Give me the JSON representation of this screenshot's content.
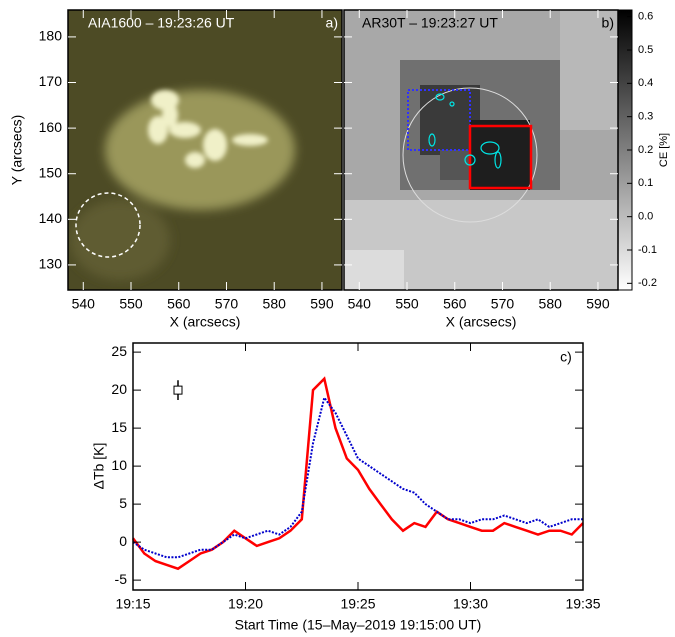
{
  "chart_data": [
    {
      "type": "image",
      "title": "AIA1600 – 19:23:26 UT",
      "panel_label": "a)",
      "xlabel": "X (arcsecs)",
      "ylabel": "Y (arcsecs)",
      "xlim": [
        536.8,
        594.2
      ],
      "xticks": [
        540,
        550,
        560,
        570,
        580,
        590
      ],
      "ylim": [
        124.5,
        185.9
      ],
      "yticks": [
        130,
        140,
        150,
        160,
        170,
        180
      ]
    },
    {
      "type": "image",
      "title": "AR30T – 19:23:27 UT",
      "panel_label": "b)",
      "xlabel": "X (arcsecs)",
      "xlim": [
        536.8,
        594.2
      ],
      "xticks": [
        540,
        550,
        560,
        570,
        580,
        590
      ],
      "ylim": [
        124.5,
        185.9
      ],
      "yticks": [
        130,
        140,
        150,
        160,
        170,
        180
      ],
      "colorbar": {
        "label": "CE [%]",
        "lim": [
          -0.22,
          0.62
        ],
        "ticks": [
          -0.2,
          -0.1,
          {
            "value": 0,
            "label": "0.0"
          },
          0.1,
          0.2,
          0.3,
          0.4,
          0.5,
          0.6
        ]
      }
    },
    {
      "type": "line",
      "panel_label": "c)",
      "xlabel": "Start Time (15–May–2019 19:15:00 UT)",
      "ylabel": "ΔTb [K]",
      "x": [
        0,
        0.5,
        1,
        1.5,
        2,
        2.5,
        3,
        3.5,
        4,
        4.5,
        5,
        5.5,
        6,
        6.5,
        7,
        7.5,
        8,
        8.5,
        9,
        9.5,
        10,
        10.5,
        11,
        11.5,
        12,
        12.5,
        13,
        13.5,
        14,
        14.5,
        15,
        15.5,
        16,
        16.5,
        17,
        17.5,
        18,
        18.5,
        19,
        19.5,
        20
      ],
      "xlim": [
        0,
        20
      ],
      "xticks": [
        {
          "value": 0,
          "label": "19:15"
        },
        {
          "value": 5,
          "label": "19:20"
        },
        {
          "value": 10,
          "label": "19:25"
        },
        {
          "value": 15,
          "label": "19:30"
        },
        {
          "value": 20,
          "label": "19:35"
        }
      ],
      "ylim": [
        -6.3,
        26.2
      ],
      "yticks": [
        -5,
        0,
        5,
        10,
        15,
        20,
        25
      ],
      "series": [
        {
          "name": "red",
          "color": "#ff0000",
          "values": [
            0.5,
            -1.5,
            -2.5,
            -3,
            -3.5,
            -2.5,
            -1.5,
            -1,
            0,
            1.5,
            0.5,
            -0.5,
            0,
            0.5,
            1.5,
            3,
            20,
            21.5,
            15,
            11,
            9.5,
            7,
            5,
            3,
            1.5,
            2.5,
            2,
            4,
            3,
            2.5,
            2,
            1.5,
            1.5,
            2.5,
            2,
            1.5,
            1,
            1.5,
            1.5,
            1,
            2.5
          ]
        },
        {
          "name": "blue",
          "color": "#0000cc",
          "values": [
            0,
            -1,
            -1.5,
            -2,
            -2,
            -1.5,
            -1,
            -1,
            0,
            1,
            0.5,
            1,
            1.5,
            1,
            2,
            4,
            13,
            19,
            17,
            14,
            11,
            10,
            9,
            8,
            7,
            6.5,
            5,
            4,
            3,
            3,
            2.5,
            3,
            3,
            3.5,
            3,
            2.5,
            3,
            2,
            2.5,
            3,
            3
          ]
        }
      ],
      "error_bar": {
        "x": 2,
        "y": 20,
        "error": 1.3
      }
    }
  ]
}
